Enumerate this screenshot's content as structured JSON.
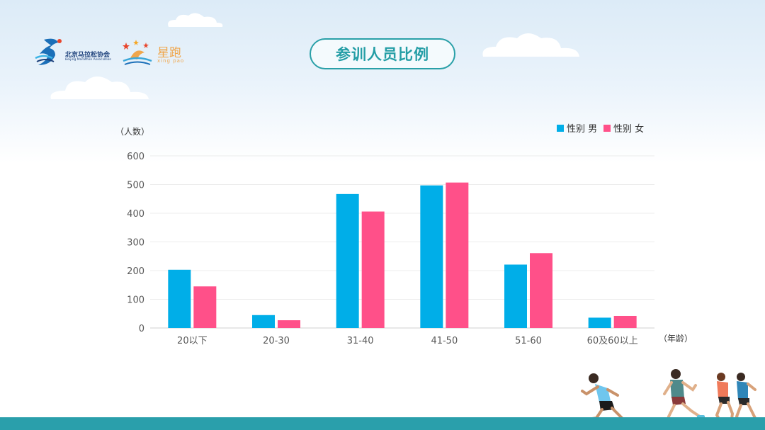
{
  "logos": {
    "association_name": "北京马拉松协会",
    "association_name_en": "Beijing Marathon Association",
    "xingpao_name": "星跑",
    "xingpao_pinyin": "xing pao"
  },
  "page_title": "参训人员比例",
  "colors": {
    "male": "#00aee8",
    "female": "#ff5089",
    "accent": "#2a9fab",
    "axis_text": "#595959"
  },
  "chart_data": {
    "type": "bar",
    "ylabel": "（人数）",
    "xlabel": "（年龄）",
    "categories": [
      "20以下",
      "20-30",
      "31-40",
      "41-50",
      "51-60",
      "60及60以上"
    ],
    "ylim": [
      0,
      600
    ],
    "yticks": [
      0,
      100,
      200,
      300,
      400,
      500,
      600
    ],
    "grid": true,
    "legend_position": "top-right",
    "series": [
      {
        "name": "性别 男",
        "color": "#00aee8",
        "values": [
          203,
          45,
          467,
          497,
          221,
          36
        ]
      },
      {
        "name": "性别 女",
        "color": "#ff5089",
        "values": [
          145,
          27,
          406,
          507,
          261,
          42
        ]
      }
    ]
  },
  "decor": {
    "runner_icon": "runner-icon",
    "cloud_icon": "cloud-icon"
  }
}
